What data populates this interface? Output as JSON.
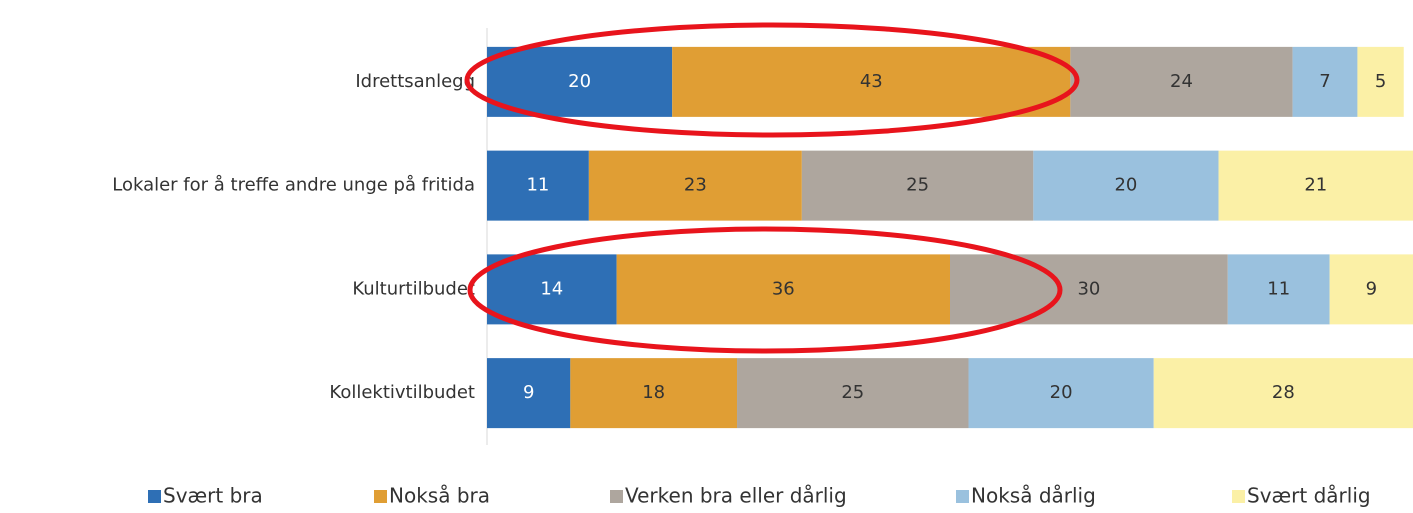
{
  "chart_data": {
    "type": "bar",
    "orientation": "horizontal",
    "stacked": true,
    "categories": [
      "Idrettsanlegg",
      "Lokaler for å treffe andre unge på fritida",
      "Kulturtilbudet",
      "Kollektivtilbudet"
    ],
    "series": [
      {
        "name": "Svært bra",
        "color": "#2e6fb5",
        "values": [
          20,
          11,
          14,
          9
        ]
      },
      {
        "name": "Nokså bra",
        "color": "#e09e34",
        "values": [
          43,
          23,
          36,
          18
        ]
      },
      {
        "name": "Verken bra eller dårlig",
        "color": "#aea69e",
        "values": [
          24,
          25,
          30,
          25
        ]
      },
      {
        "name": "Nokså dårlig",
        "color": "#9ac1de",
        "values": [
          7,
          20,
          11,
          20
        ]
      },
      {
        "name": "Svært dårlig",
        "color": "#fbf0a6",
        "values": [
          5,
          21,
          9,
          28
        ]
      }
    ],
    "xlim": [
      0,
      100
    ],
    "legend": "bottom"
  }
}
